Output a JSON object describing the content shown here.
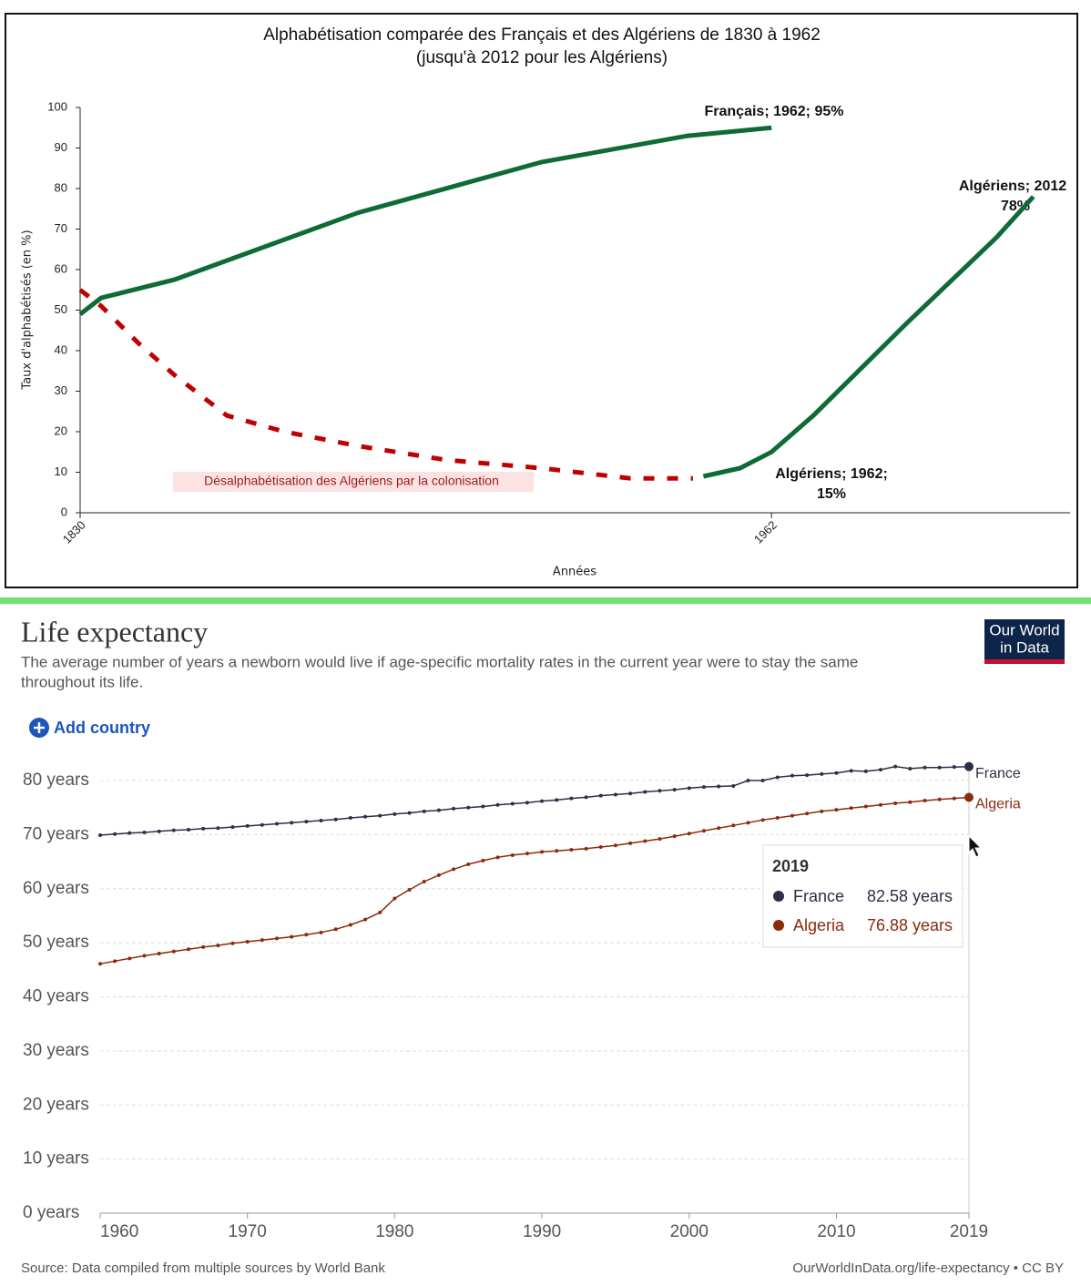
{
  "chart_data": [
    {
      "type": "line",
      "title": "Alphabétisation comparée des Français et des Algériens de 1830 à 1962",
      "subtitle": "(jusqu'à 2012 pour les Algériens)",
      "y_label": "Taux d'alphabétisés (en %)",
      "x_label": "Années",
      "xlim": [
        1830,
        2019
      ],
      "xticks": [
        1830,
        1962
      ],
      "ylim": [
        0,
        100
      ],
      "yticks": [
        0,
        10,
        20,
        30,
        40,
        50,
        60,
        70,
        80,
        90,
        100
      ],
      "grid": false,
      "markers": false,
      "series": [
        {
          "color": "#0e6b35",
          "dashed": false,
          "x": [
            1830,
            1834,
            1848,
            1883,
            1918,
            1946,
            1962
          ],
          "values": [
            49,
            53,
            57.5,
            74,
            86.5,
            93,
            95
          ]
        },
        {
          "color": "#c00000",
          "dashed": true,
          "x": [
            1830,
            1834,
            1841,
            1848,
            1858,
            1869,
            1883,
            1900,
            1918,
            1935,
            1947
          ],
          "values": [
            55,
            51,
            42,
            34,
            24,
            20,
            16.5,
            13,
            11,
            8.5,
            8.5
          ]
        },
        {
          "color": "#0e6b35",
          "dashed": false,
          "x": [
            1949,
            1956,
            1962,
            1970,
            1988,
            2005,
            2012
          ],
          "values": [
            9,
            11,
            15,
            24,
            47,
            68,
            78
          ]
        }
      ],
      "annotations": [
        {
          "lines": [
            "Français; 1962; 95%"
          ]
        },
        {
          "lines": [
            "Algériens; 2012",
            "78%"
          ]
        },
        {
          "lines": [
            "Algériens; 1962;",
            "15%"
          ]
        },
        {
          "lines": [
            "Désalphabétisation des Algériens par la colonisation"
          ]
        }
      ]
    },
    {
      "type": "line",
      "title": "Life expectancy",
      "subtitle": [
        "The average number of years a newborn would live if age-specific mortality rates in the current year were to stay the same",
        "throughout its life."
      ],
      "button": "Add country",
      "logo": [
        "Our World",
        "in Data"
      ],
      "source": "Source: Data compiled from multiple sources by World Bank",
      "url": "OurWorldInData.org/life-expectancy • CC BY",
      "xlim": [
        1960,
        2019
      ],
      "xticks": [
        1960,
        1970,
        1980,
        1990,
        2000,
        2010,
        2019
      ],
      "ylim": [
        0,
        80
      ],
      "yticks": [
        {
          "value": 0,
          "label": "0 years"
        },
        {
          "value": 10,
          "label": "10 years"
        },
        {
          "value": 20,
          "label": "20 years"
        },
        {
          "value": 30,
          "label": "30 years"
        },
        {
          "value": 40,
          "label": "40 years"
        },
        {
          "value": 50,
          "label": "50 years"
        },
        {
          "value": 60,
          "label": "60 years"
        },
        {
          "value": 70,
          "label": "70 years"
        },
        {
          "value": 80,
          "label": "80 years"
        }
      ],
      "grid": true,
      "markers": true,
      "x": [
        1960,
        1961,
        1962,
        1963,
        1964,
        1965,
        1966,
        1967,
        1968,
        1969,
        1970,
        1971,
        1972,
        1973,
        1974,
        1975,
        1976,
        1977,
        1978,
        1979,
        1980,
        1981,
        1982,
        1983,
        1984,
        1985,
        1986,
        1987,
        1988,
        1989,
        1990,
        1991,
        1992,
        1993,
        1994,
        1995,
        1996,
        1997,
        1998,
        1999,
        2000,
        2001,
        2002,
        2003,
        2004,
        2005,
        2006,
        2007,
        2008,
        2009,
        2010,
        2011,
        2012,
        2013,
        2014,
        2015,
        2016,
        2017,
        2018,
        2019
      ],
      "series": [
        {
          "name": "France",
          "color": "#2b3044",
          "values": [
            69.9,
            70.1,
            70.3,
            70.4,
            70.6,
            70.8,
            70.9,
            71.1,
            71.2,
            71.4,
            71.6,
            71.8,
            72.0,
            72.2,
            72.4,
            72.6,
            72.8,
            73.1,
            73.3,
            73.5,
            73.8,
            74.0,
            74.3,
            74.5,
            74.8,
            75.0,
            75.2,
            75.5,
            75.7,
            75.9,
            76.2,
            76.4,
            76.7,
            76.9,
            77.2,
            77.4,
            77.6,
            77.9,
            78.1,
            78.3,
            78.6,
            78.8,
            78.9,
            79.0,
            80.0,
            80.0,
            80.6,
            80.9,
            81.0,
            81.2,
            81.4,
            81.8,
            81.7,
            82.0,
            82.6,
            82.2,
            82.4,
            82.4,
            82.5,
            82.58
          ]
        },
        {
          "name": "Algeria",
          "color": "#8c2a0c",
          "values": [
            46.1,
            46.6,
            47.1,
            47.6,
            48.0,
            48.4,
            48.8,
            49.2,
            49.5,
            49.9,
            50.2,
            50.5,
            50.8,
            51.1,
            51.5,
            51.9,
            52.5,
            53.3,
            54.3,
            55.6,
            58.2,
            59.8,
            61.3,
            62.5,
            63.6,
            64.5,
            65.2,
            65.8,
            66.2,
            66.5,
            66.8,
            67.0,
            67.2,
            67.4,
            67.7,
            68.0,
            68.4,
            68.8,
            69.2,
            69.7,
            70.2,
            70.7,
            71.2,
            71.7,
            72.2,
            72.7,
            73.1,
            73.5,
            73.9,
            74.3,
            74.6,
            74.9,
            75.2,
            75.5,
            75.8,
            76.0,
            76.3,
            76.5,
            76.7,
            76.88
          ]
        }
      ],
      "tooltip": {
        "x": 2019,
        "labels": [
          "82.58 years",
          "76.88 years"
        ]
      }
    }
  ]
}
